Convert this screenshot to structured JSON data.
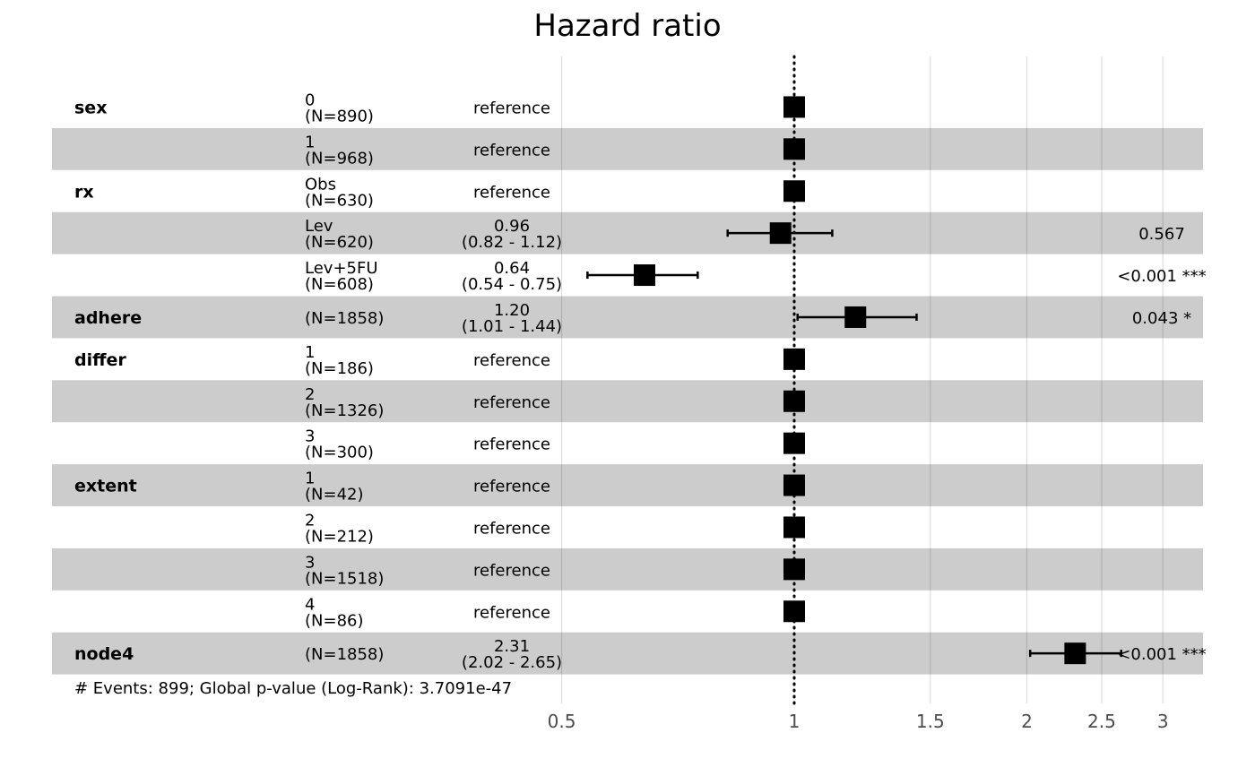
{
  "chart_data": {
    "type": "forest",
    "title": "Hazard ratio",
    "x_scale": "log",
    "xlim": [
      0.5,
      3.2
    ],
    "x_ticks": [
      {
        "value": 0.5,
        "label": "0.5"
      },
      {
        "value": 1,
        "label": "1"
      },
      {
        "value": 1.5,
        "label": "1.5"
      },
      {
        "value": 2,
        "label": "2"
      },
      {
        "value": 2.5,
        "label": "2.5"
      },
      {
        "value": 3,
        "label": "3"
      }
    ],
    "reference_line": 1,
    "rows": [
      {
        "variable": "sex",
        "level": "0",
        "n": "(N=890)",
        "estimate_label": "reference",
        "ci_label": "",
        "hr": 1,
        "lower": null,
        "upper": null,
        "p_label": "",
        "shaded": false
      },
      {
        "variable": "",
        "level": "1",
        "n": "(N=968)",
        "estimate_label": "reference",
        "ci_label": "",
        "hr": 1,
        "lower": null,
        "upper": null,
        "p_label": "",
        "shaded": true
      },
      {
        "variable": "rx",
        "level": "Obs",
        "n": "(N=630)",
        "estimate_label": "reference",
        "ci_label": "",
        "hr": 1,
        "lower": null,
        "upper": null,
        "p_label": "",
        "shaded": false
      },
      {
        "variable": "",
        "level": "Lev",
        "n": "(N=620)",
        "estimate_label": "0.96",
        "ci_label": "(0.82 - 1.12)",
        "hr": 0.96,
        "lower": 0.82,
        "upper": 1.12,
        "p_label": "0.567",
        "shaded": true
      },
      {
        "variable": "",
        "level": "Lev+5FU",
        "n": "(N=608)",
        "estimate_label": "0.64",
        "ci_label": "(0.54 - 0.75)",
        "hr": 0.64,
        "lower": 0.54,
        "upper": 0.75,
        "p_label": "<0.001 ***",
        "shaded": false
      },
      {
        "variable": "adhere",
        "level": "",
        "n": "(N=1858)",
        "estimate_label": "1.20",
        "ci_label": "(1.01 - 1.44)",
        "hr": 1.2,
        "lower": 1.01,
        "upper": 1.44,
        "p_label": "0.043 *",
        "shaded": true
      },
      {
        "variable": "differ",
        "level": "1",
        "n": "(N=186)",
        "estimate_label": "reference",
        "ci_label": "",
        "hr": 1,
        "lower": null,
        "upper": null,
        "p_label": "",
        "shaded": false
      },
      {
        "variable": "",
        "level": "2",
        "n": "(N=1326)",
        "estimate_label": "reference",
        "ci_label": "",
        "hr": 1,
        "lower": null,
        "upper": null,
        "p_label": "",
        "shaded": true
      },
      {
        "variable": "",
        "level": "3",
        "n": "(N=300)",
        "estimate_label": "reference",
        "ci_label": "",
        "hr": 1,
        "lower": null,
        "upper": null,
        "p_label": "",
        "shaded": false
      },
      {
        "variable": "extent",
        "level": "1",
        "n": "(N=42)",
        "estimate_label": "reference",
        "ci_label": "",
        "hr": 1,
        "lower": null,
        "upper": null,
        "p_label": "",
        "shaded": true
      },
      {
        "variable": "",
        "level": "2",
        "n": "(N=212)",
        "estimate_label": "reference",
        "ci_label": "",
        "hr": 1,
        "lower": null,
        "upper": null,
        "p_label": "",
        "shaded": false
      },
      {
        "variable": "",
        "level": "3",
        "n": "(N=1518)",
        "estimate_label": "reference",
        "ci_label": "",
        "hr": 1,
        "lower": null,
        "upper": null,
        "p_label": "",
        "shaded": true
      },
      {
        "variable": "",
        "level": "4",
        "n": "(N=86)",
        "estimate_label": "reference",
        "ci_label": "",
        "hr": 1,
        "lower": null,
        "upper": null,
        "p_label": "",
        "shaded": false
      },
      {
        "variable": "node4",
        "level": "",
        "n": "(N=1858)",
        "estimate_label": "2.31",
        "ci_label": "(2.02 - 2.65)",
        "hr": 2.31,
        "lower": 2.02,
        "upper": 2.65,
        "p_label": "<0.001 ***",
        "shaded": true
      }
    ],
    "footnote": "# Events: 899; Global p-value (Log-Rank): 3.7091e-47",
    "colors": {
      "shade": "#cccccc",
      "grid": "#d9d9d9",
      "marker": "#000000",
      "tick_text": "#4d4d4d"
    }
  }
}
